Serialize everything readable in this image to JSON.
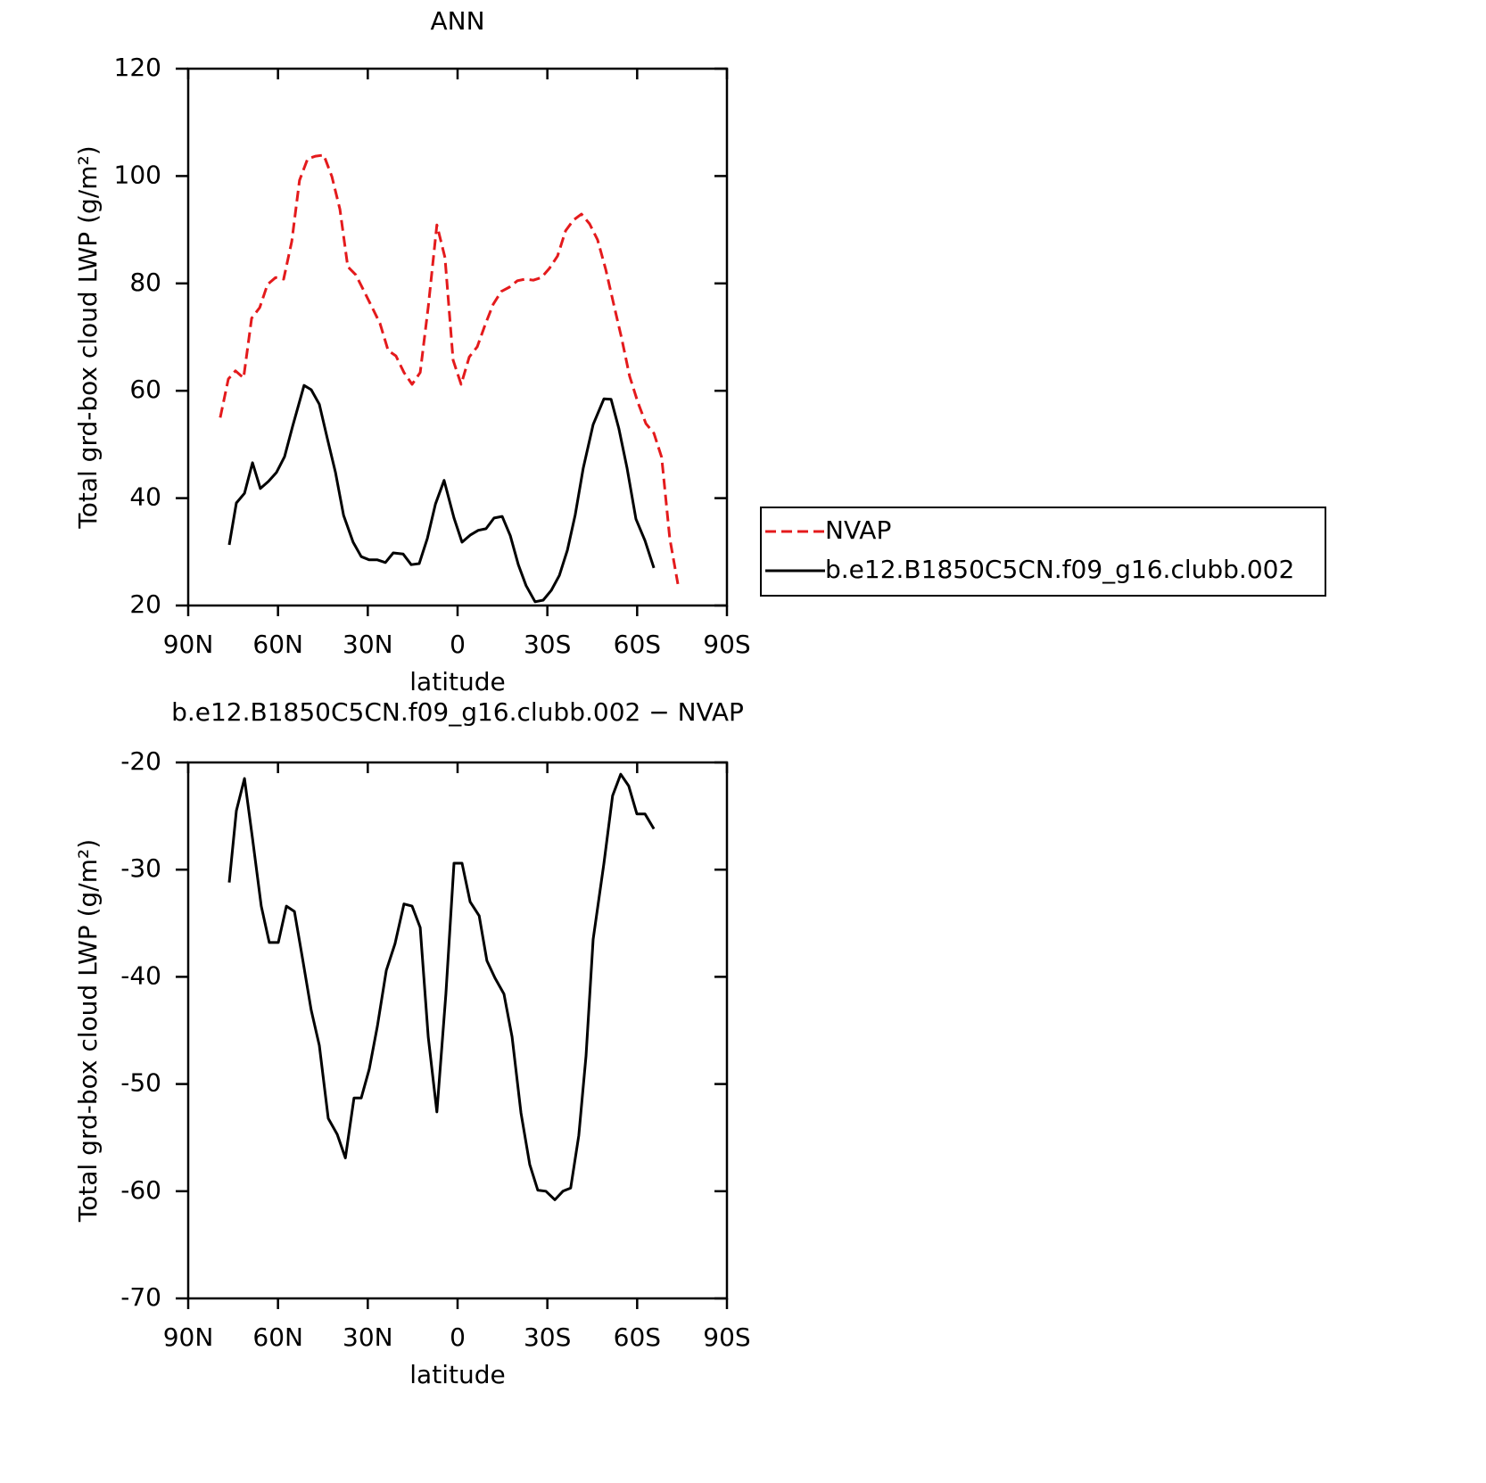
{
  "chart_data": [
    {
      "type": "line",
      "title": "ANN",
      "xlabel": "latitude",
      "ylabel": "Total grd-box cloud LWP (g/m²)",
      "xlim": [
        90,
        -90
      ],
      "xticks": [
        {
          "value": 90,
          "label": "90N"
        },
        {
          "value": 60,
          "label": "60N"
        },
        {
          "value": 30,
          "label": "30N"
        },
        0,
        {
          "value": -30,
          "label": "30S"
        },
        {
          "value": -60,
          "label": "60S"
        },
        {
          "value": -90,
          "label": "90S"
        }
      ],
      "ylim": [
        20,
        120
      ],
      "yticks": [
        20,
        40,
        60,
        80,
        100,
        120
      ],
      "legend": "outside-right",
      "series": [
        {
          "name": "NVAP",
          "color": "#e41a1c",
          "dashed": true,
          "x": [
            79.3,
            76.6,
            74.2,
            71.5,
            68.8,
            66.1,
            63.5,
            60.8,
            58.1,
            55.4,
            52.8,
            50.1,
            47.4,
            44.7,
            42.0,
            39.3,
            36.7,
            34.0,
            31.3,
            28.6,
            25.9,
            23.2,
            20.6,
            17.9,
            15.2,
            12.5,
            9.8,
            6.9,
            4.2,
            1.5,
            -1.2,
            -3.9,
            -6.6,
            -9.2,
            -11.9,
            -14.6,
            -17.3,
            -20.0,
            -22.6,
            -25.3,
            -28.0,
            -30.7,
            -33.4,
            -36.1,
            -38.7,
            -41.4,
            -44.1,
            -46.8,
            -49.5,
            -52.1,
            -54.8,
            -57.5,
            -60.2,
            -62.9,
            -65.6,
            -68.2,
            -70.9,
            -73.6
          ],
          "values": [
            55.0,
            62.2,
            63.7,
            62.4,
            73.5,
            75.5,
            79.8,
            81.1,
            80.8,
            87.8,
            99.2,
            103.2,
            103.7,
            103.9,
            99.9,
            93.8,
            83.1,
            81.6,
            78.6,
            75.6,
            72.5,
            67.5,
            66.5,
            63.4,
            61.2,
            63.4,
            75.6,
            90.9,
            84.8,
            65.7,
            61.2,
            66.3,
            68.2,
            72.3,
            76.1,
            78.5,
            79.3,
            80.5,
            80.8,
            80.6,
            81.1,
            82.8,
            85.1,
            89.8,
            91.8,
            92.9,
            91.1,
            88.1,
            82.6,
            76.3,
            69.8,
            62.7,
            57.9,
            53.9,
            52.1,
            47.6,
            32.5,
            24.0
          ]
        },
        {
          "name": "b.e12.B1850C5CN.f09_g16.clubb.002",
          "color": "#000000",
          "dashed": false,
          "x": [
            76.3,
            73.9,
            71.2,
            68.5,
            65.9,
            63.2,
            60.5,
            57.8,
            55.1,
            51.3,
            48.9,
            46.2,
            43.5,
            40.8,
            38.1,
            34.9,
            32.2,
            29.5,
            26.8,
            24.1,
            21.5,
            18.2,
            15.5,
            12.8,
            10.1,
            7.4,
            4.5,
            1.2,
            -1.5,
            -4.2,
            -6.9,
            -9.5,
            -12.2,
            -14.9,
            -17.6,
            -20.3,
            -22.9,
            -25.9,
            -28.6,
            -31.3,
            -34.0,
            -36.7,
            -39.3,
            -42.0,
            -45.3,
            -48.9,
            -51.3,
            -53.9,
            -56.6,
            -59.6,
            -62.6,
            -65.6
          ],
          "values": [
            31.3,
            39.1,
            40.9,
            46.6,
            41.8,
            43.1,
            44.8,
            47.7,
            53.4,
            61.0,
            60.2,
            57.5,
            51.1,
            44.8,
            36.8,
            31.8,
            29.1,
            28.5,
            28.5,
            28.0,
            29.8,
            29.6,
            27.6,
            27.8,
            32.5,
            38.9,
            43.3,
            36.3,
            31.8,
            33.1,
            34.0,
            34.3,
            36.3,
            36.6,
            33.0,
            27.6,
            23.7,
            20.7,
            21.0,
            22.8,
            25.6,
            30.3,
            36.9,
            45.6,
            53.7,
            58.5,
            58.4,
            52.9,
            45.7,
            36.1,
            32.1,
            27.0
          ]
        }
      ]
    },
    {
      "type": "line",
      "title": "b.e12.B1850C5CN.f09_g16.clubb.002 − NVAP",
      "xlabel": "latitude",
      "ylabel": "Total grd-box cloud LWP (g/m²)",
      "xlim": [
        90,
        -90
      ],
      "xticks": [
        {
          "value": 90,
          "label": "90N"
        },
        {
          "value": 60,
          "label": "60N"
        },
        {
          "value": 30,
          "label": "30N"
        },
        0,
        {
          "value": -30,
          "label": "30S"
        },
        {
          "value": -60,
          "label": "60S"
        },
        {
          "value": -90,
          "label": "90S"
        }
      ],
      "ylim": [
        -70,
        -20
      ],
      "yticks": [
        -70,
        -60,
        -50,
        -40,
        -30,
        -20
      ],
      "series": [
        {
          "color": "#000000",
          "dashed": false,
          "x": [
            76.3,
            73.9,
            71.2,
            68.5,
            65.6,
            62.9,
            59.9,
            57.2,
            54.5,
            51.8,
            48.9,
            46.2,
            43.2,
            40.2,
            37.5,
            34.6,
            32.2,
            29.5,
            26.8,
            23.8,
            20.9,
            17.9,
            15.2,
            12.5,
            9.8,
            6.9,
            3.9,
            1.2,
            -1.5,
            -4.2,
            -7.2,
            -9.8,
            -12.5,
            -15.5,
            -18.2,
            -21.2,
            -24.1,
            -26.8,
            -29.5,
            -32.5,
            -35.2,
            -37.8,
            -40.5,
            -42.9,
            -45.3,
            -48.9,
            -51.8,
            -54.5,
            -57.2,
            -59.9,
            -62.6,
            -65.6
          ],
          "values": [
            -31.2,
            -24.5,
            -21.5,
            -27.1,
            -33.4,
            -36.8,
            -36.8,
            -33.4,
            -33.9,
            -38.3,
            -43.1,
            -46.4,
            -53.2,
            -54.7,
            -56.9,
            -51.3,
            -51.3,
            -48.6,
            -44.6,
            -39.4,
            -36.9,
            -33.2,
            -33.4,
            -35.4,
            -45.6,
            -52.6,
            -41.6,
            -29.4,
            -29.4,
            -33.0,
            -34.3,
            -38.5,
            -40.1,
            -41.6,
            -45.6,
            -52.7,
            -57.5,
            -59.9,
            -60.0,
            -60.8,
            -60.0,
            -59.7,
            -54.8,
            -47.4,
            -36.5,
            -29.4,
            -23.1,
            -21.1,
            -22.2,
            -24.8,
            -24.8,
            -26.2
          ]
        }
      ]
    }
  ]
}
